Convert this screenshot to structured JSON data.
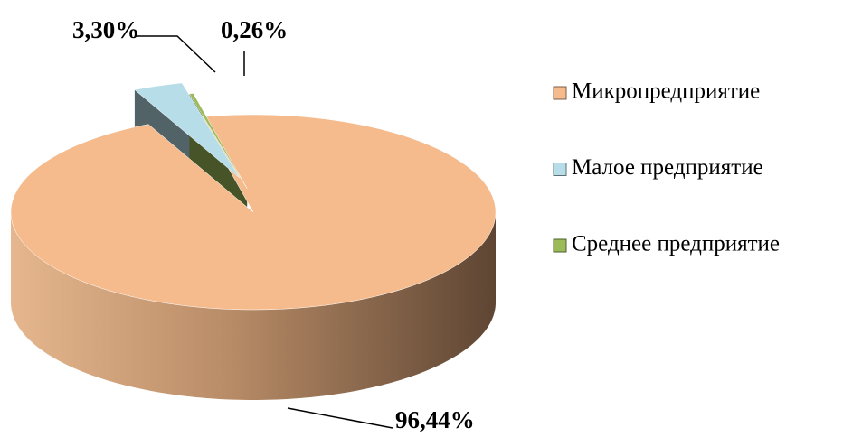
{
  "chart_data": {
    "type": "pie",
    "categories": [
      "Микропредприятие",
      "Малое предприятие",
      "Среднее предприятие"
    ],
    "values": [
      96.44,
      3.3,
      0.26
    ],
    "value_labels": [
      "96,44%",
      "3,30%",
      "0,26%"
    ],
    "colors": [
      "#f5bb8d",
      "#b7dde8",
      "#9bbb59"
    ],
    "legend": "right"
  }
}
